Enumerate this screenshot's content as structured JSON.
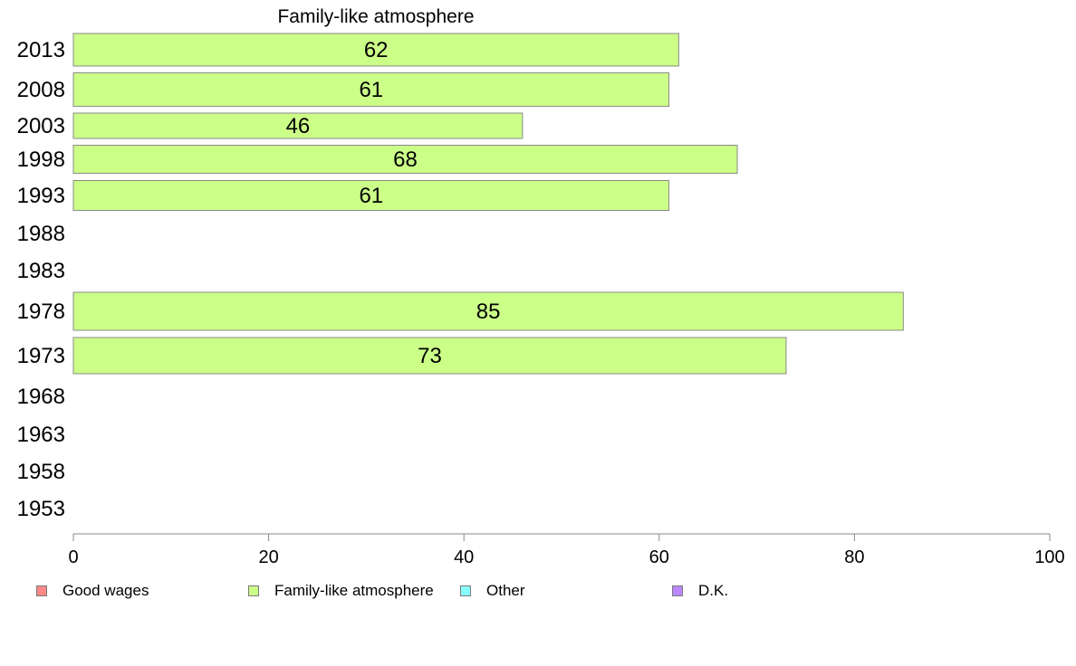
{
  "chart_data": {
    "type": "bar",
    "orientation": "horizontal",
    "title": "Family-like atmosphere",
    "categories": [
      "2013",
      "2008",
      "2003",
      "1998",
      "1993",
      "1988",
      "1983",
      "1978",
      "1973",
      "1968",
      "1963",
      "1958",
      "1953"
    ],
    "series": [
      {
        "name": "Family-like atmosphere",
        "color": "#ccff88",
        "values": [
          62,
          61,
          46,
          68,
          61,
          null,
          null,
          85,
          73,
          null,
          null,
          null,
          null
        ]
      }
    ],
    "xlim": [
      0,
      100
    ],
    "xticks": [
      0,
      20,
      40,
      60,
      80,
      100
    ],
    "grid": false,
    "legend_position": "bottom"
  },
  "legend": {
    "items": [
      {
        "label": "Good wages",
        "color": "#ff8888"
      },
      {
        "label": "Family-like atmosphere",
        "color": "#ccff88"
      },
      {
        "label": "Other",
        "color": "#88ffff"
      },
      {
        "label": "D.K.",
        "color": "#bb88ff"
      }
    ]
  }
}
